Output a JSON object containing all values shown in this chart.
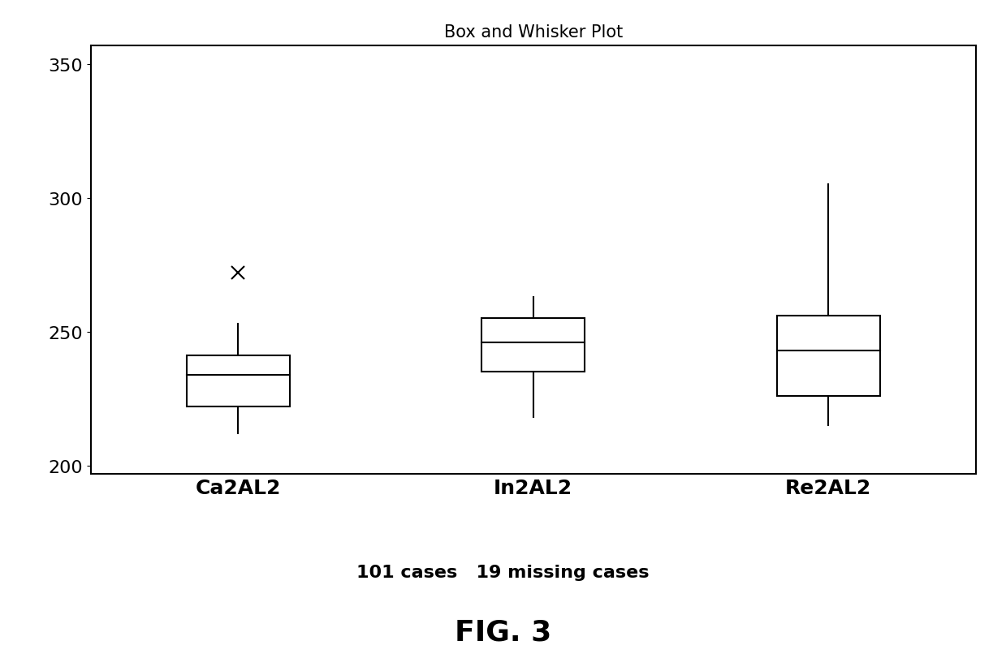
{
  "title": "Box and Whisker Plot",
  "categories": [
    "Ca2AL2",
    "In2AL2",
    "Re2AL2"
  ],
  "boxes": [
    {
      "label": "Ca2AL2",
      "q1": 222,
      "median": 234,
      "q3": 241,
      "whisker_low": 212,
      "whisker_high": 253,
      "outliers": [
        272
      ]
    },
    {
      "label": "In2AL2",
      "q1": 235,
      "median": 246,
      "q3": 255,
      "whisker_low": 218,
      "whisker_high": 263,
      "outliers": []
    },
    {
      "label": "Re2AL2",
      "q1": 226,
      "median": 243,
      "q3": 256,
      "whisker_low": 215,
      "whisker_high": 305,
      "outliers": []
    }
  ],
  "ylim": [
    197,
    357
  ],
  "yticks": [
    200,
    250,
    300,
    350
  ],
  "box_width": 0.35,
  "box_color": "#ffffff",
  "box_edge_color": "#000000",
  "whisker_color": "#000000",
  "median_color": "#000000",
  "outlier_marker": "x",
  "outlier_color": "#000000",
  "footer_text": "101 cases   19 missing cases",
  "fig_label": "FIG. 3",
  "background_color": "#ffffff",
  "title_fontsize": 15,
  "tick_fontsize": 16,
  "label_fontsize": 18,
  "footer_fontsize": 16,
  "fig_label_fontsize": 26,
  "linewidth": 1.5
}
